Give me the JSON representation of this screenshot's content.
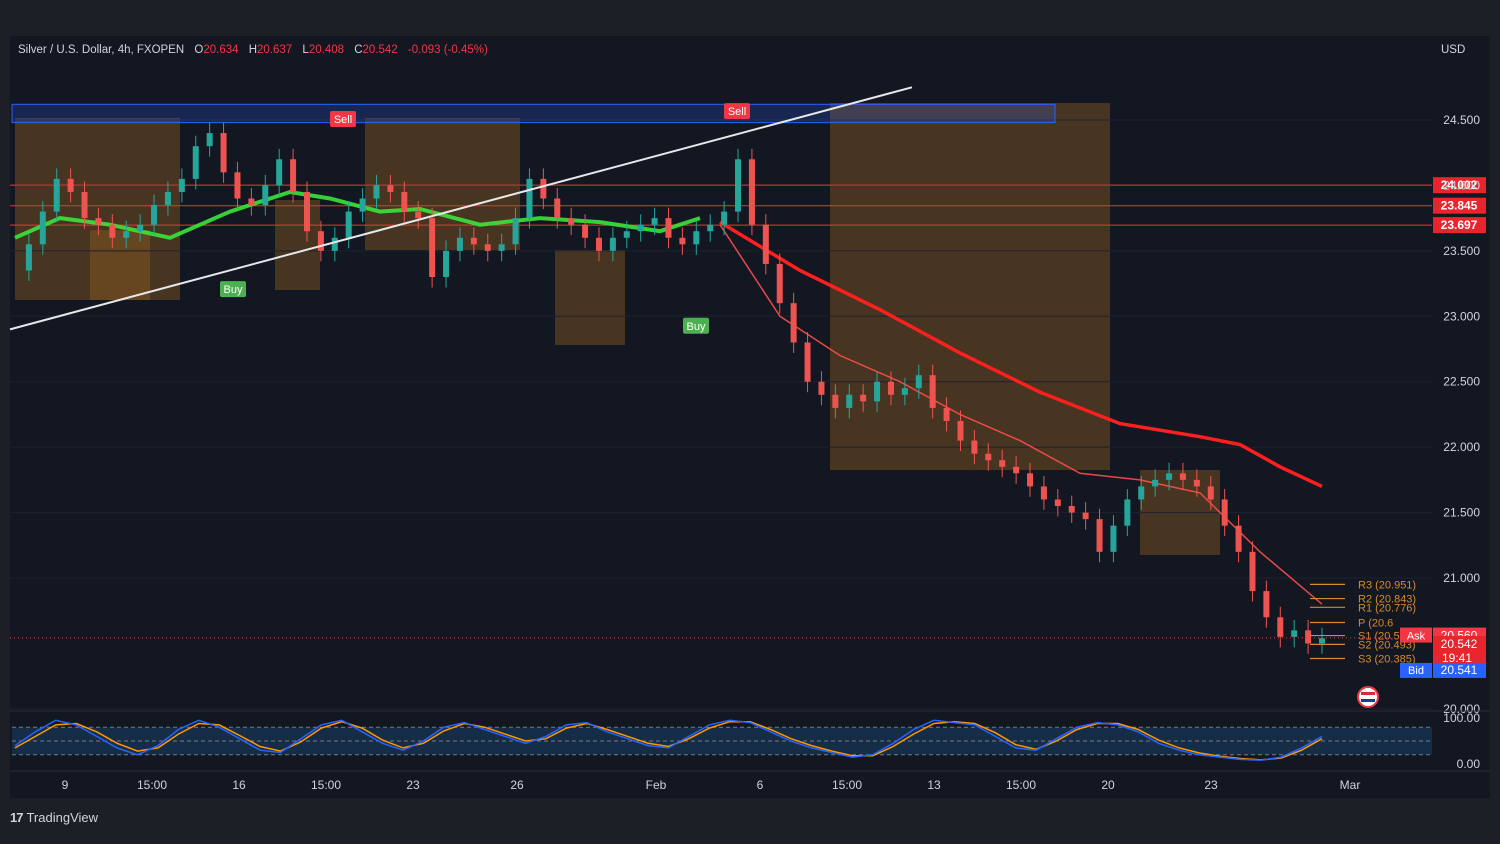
{
  "header": {
    "symbol": "Silver / U.S. Dollar, 4h, FXOPEN",
    "o_label": "O",
    "o_value": "20.634",
    "h_label": "H",
    "h_value": "20.637",
    "l_label": "L",
    "l_value": "20.408",
    "c_label": "C",
    "c_value": "20.542",
    "change": "-0.093 (-0.45%)",
    "currency": "USD"
  },
  "brand": {
    "logo": "17",
    "name": "TradingView"
  },
  "chart_data": {
    "type": "line",
    "y_axis": {
      "ticks": [
        "24.500",
        "24.000",
        "23.500",
        "23.000",
        "22.500",
        "22.000",
        "21.500",
        "21.000",
        "20.000"
      ],
      "tick_values": [
        24.5,
        24.0,
        23.5,
        23.0,
        22.5,
        22.0,
        21.5,
        21.0,
        20.0
      ],
      "range": [
        19.95,
        24.7
      ]
    },
    "x_axis": {
      "ticks": [
        "9",
        "15:00",
        "16",
        "15:00",
        "23",
        "26",
        "Feb",
        "6",
        "15:00",
        "13",
        "15:00",
        "20",
        "23",
        "Mar"
      ]
    },
    "price": {
      "points": [
        23.35,
        23.55,
        23.8,
        24.05,
        23.95,
        23.75,
        23.7,
        23.6,
        23.65,
        23.7,
        23.85,
        23.95,
        24.05,
        24.3,
        24.4,
        24.1,
        23.9,
        23.85,
        24.0,
        24.2,
        23.95,
        23.65,
        23.5,
        23.6,
        23.8,
        23.9,
        24.0,
        23.95,
        23.8,
        23.75,
        23.3,
        23.5,
        23.6,
        23.55,
        23.5,
        23.55,
        23.75,
        24.05,
        23.9,
        23.75,
        23.7,
        23.6,
        23.5,
        23.6,
        23.65,
        23.7,
        23.75,
        23.6,
        23.55,
        23.65,
        23.7,
        23.8,
        24.2,
        23.7,
        23.4,
        23.1,
        22.8,
        22.5,
        22.4,
        22.3,
        22.4,
        22.35,
        22.5,
        22.4,
        22.45,
        22.55,
        22.3,
        22.2,
        22.05,
        21.95,
        21.9,
        21.85,
        21.8,
        21.7,
        21.6,
        21.55,
        21.5,
        21.45,
        21.2,
        21.4,
        21.6,
        21.7,
        21.75,
        21.8,
        21.75,
        21.7,
        21.6,
        21.4,
        21.2,
        20.9,
        20.7,
        20.55,
        20.6,
        20.5,
        20.54
      ],
      "x_start": 15,
      "x_end": 1322
    },
    "lines": {
      "ema_slow": {
        "x": [
          720,
          800,
          880,
          960,
          1040,
          1120,
          1200,
          1240,
          1280,
          1322
        ],
        "y": [
          23.72,
          23.35,
          23.05,
          22.72,
          22.42,
          22.18,
          22.08,
          22.02,
          21.85,
          21.7
        ]
      },
      "ema_fast": {
        "x": [
          720,
          780,
          840,
          900,
          960,
          1020,
          1080,
          1140,
          1200,
          1260,
          1322
        ],
        "y": [
          23.7,
          23.0,
          22.7,
          22.5,
          22.25,
          22.05,
          21.8,
          21.75,
          21.65,
          21.2,
          20.8
        ]
      },
      "green_band": {
        "x": [
          15,
          60,
          110,
          170,
          230,
          290,
          330,
          380,
          420,
          480,
          540,
          600,
          660,
          700
        ],
        "y": [
          23.6,
          23.75,
          23.7,
          23.6,
          23.8,
          23.95,
          23.9,
          23.8,
          23.82,
          23.7,
          23.75,
          23.72,
          23.65,
          23.75
        ]
      },
      "trendline": {
        "x": [
          10,
          912
        ],
        "y": [
          22.9,
          24.75
        ]
      }
    },
    "horizontal_levels": [
      {
        "label": "24.002",
        "value": 24.002
      },
      {
        "label": "23.845",
        "value": 23.845
      },
      {
        "label": "23.697",
        "value": 23.697
      }
    ],
    "supply_zone": {
      "from": 24.48,
      "to": 24.62
    },
    "signals": [
      {
        "label": "Sell",
        "x": 343,
        "y": 24.5
      },
      {
        "label": "Sell",
        "x": 737,
        "y": 24.56
      },
      {
        "label": "Buy",
        "x": 233,
        "y": 23.2
      },
      {
        "label": "Buy",
        "x": 696,
        "y": 22.92
      }
    ],
    "pivots": [
      {
        "label": "R3 (20.951)",
        "value": 20.951
      },
      {
        "label": "R2 (20.843)",
        "value": 20.843
      },
      {
        "label": "R1 (20.776)",
        "value": 20.776
      },
      {
        "label": "P (20.6",
        "value": 20.66
      },
      {
        "label": "S1 (20.56)",
        "value": 20.56
      },
      {
        "label": "S2 (20.493)",
        "value": 20.493
      },
      {
        "label": "S3 (20.385)",
        "value": 20.385
      }
    ],
    "price_tags": {
      "ask_label": "Ask",
      "ask_value": "20.560",
      "last_value": "20.542",
      "countdown": "19:41",
      "bid_label": "Bid",
      "bid_value": "20.541"
    },
    "oscillator": {
      "ticks": [
        "100.00",
        "0.00"
      ],
      "levels": [
        80,
        50,
        20
      ],
      "k_values": [
        40,
        70,
        95,
        85,
        60,
        35,
        20,
        40,
        75,
        95,
        80,
        55,
        30,
        25,
        55,
        85,
        95,
        70,
        45,
        30,
        50,
        80,
        90,
        75,
        60,
        45,
        60,
        85,
        90,
        70,
        55,
        40,
        35,
        60,
        85,
        95,
        90,
        70,
        50,
        35,
        25,
        15,
        20,
        45,
        75,
        95,
        90,
        85,
        60,
        35,
        30,
        55,
        80,
        90,
        85,
        70,
        45,
        30,
        20,
        15,
        10,
        8,
        15,
        35,
        60
      ],
      "d_values": [
        35,
        60,
        85,
        88,
        70,
        45,
        28,
        35,
        65,
        88,
        85,
        62,
        38,
        28,
        48,
        78,
        92,
        78,
        52,
        35,
        45,
        72,
        88,
        80,
        65,
        50,
        55,
        78,
        88,
        75,
        60,
        45,
        38,
        55,
        78,
        92,
        92,
        75,
        55,
        40,
        28,
        18,
        18,
        38,
        65,
        88,
        92,
        88,
        68,
        42,
        32,
        50,
        75,
        88,
        88,
        75,
        52,
        35,
        24,
        17,
        12,
        9,
        13,
        30,
        55
      ]
    }
  },
  "colors": {
    "background": "#131722",
    "bull": "#26a69a",
    "bear": "#ef5350",
    "ema": "#ff1f1f",
    "green": "#39e639",
    "zone": "#2962ff",
    "shade": "#8a5a22",
    "pivot": "#d68a2a",
    "bid": "#2962ff"
  }
}
